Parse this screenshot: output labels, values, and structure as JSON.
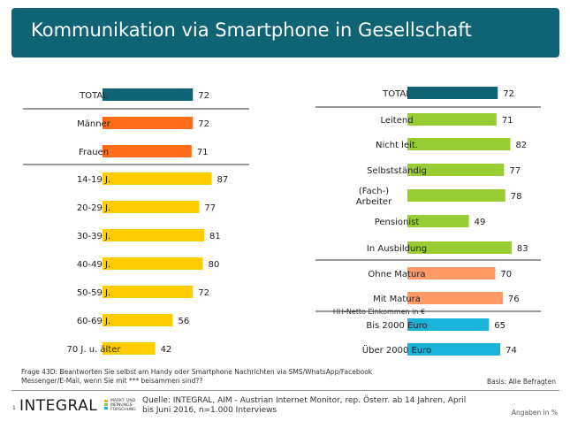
{
  "title": "Kommunikation via Smartphone in Gesellschaft",
  "colors": {
    "banner": "#0f6374",
    "total": "#0f6374",
    "gender": "#ff6d1a",
    "age": "#ffcc00",
    "occupation": "#99cc33",
    "education": "#ff9966",
    "income": "#1ab2d9"
  },
  "chart_data": [
    {
      "type": "bar",
      "orientation": "horizontal",
      "groups": [
        {
          "group": "total",
          "categories": [
            "TOTAL"
          ],
          "values": [
            72
          ]
        },
        {
          "group": "gender",
          "categories": [
            "Männer",
            "Frauen"
          ],
          "values": [
            72,
            71
          ]
        },
        {
          "group": "age",
          "categories": [
            "14-19 J.",
            "20-29 J.",
            "30-39 J.",
            "40-49 J.",
            "50-59 J.",
            "60-69 J.",
            "70 J. u. älter"
          ],
          "values": [
            87,
            77,
            81,
            80,
            72,
            56,
            42
          ]
        }
      ],
      "xlim": [
        0,
        100
      ]
    },
    {
      "type": "bar",
      "orientation": "horizontal",
      "groups": [
        {
          "group": "total",
          "categories": [
            "TOTAL"
          ],
          "values": [
            72
          ]
        },
        {
          "group": "occupation",
          "categories": [
            "Leitend",
            "Nicht leit.",
            "Selbstständig",
            "(Fach-)\nArbeiter",
            "Pensionist",
            "In Ausbildung"
          ],
          "values": [
            71,
            82,
            77,
            78,
            49,
            83
          ]
        },
        {
          "group": "education",
          "categories": [
            "Ohne Matura",
            "Mit Matura"
          ],
          "values": [
            70,
            76
          ]
        },
        {
          "group": "income",
          "header": "HH-Netto Einkommen in €",
          "categories": [
            "Bis 2000 Euro",
            "Über 2000 Euro"
          ],
          "values": [
            65,
            74
          ]
        }
      ],
      "xlim": [
        0,
        100
      ]
    }
  ],
  "footnote": "Frage 43D: Beantworten Sie selbst am Handy oder Smartphone Nachrichten via SMS/WhatsApp/Facebook Messenger/E-Mail, wenn Sie mit *** beisammen sind??",
  "basis": "Basis: Alle Befragten",
  "logo": {
    "number": "1",
    "word": "INTEGRAL",
    "sub": "MARKT- UND MEINUNGS- FORSCHUNG"
  },
  "source": "Quelle: INTEGRAL, AIM - Austrian Internet Monitor, rep. Österr. ab 14 Jahren, April bis Juni 2016, n=1.000 Interviews",
  "unit_note": "Angaben in %"
}
